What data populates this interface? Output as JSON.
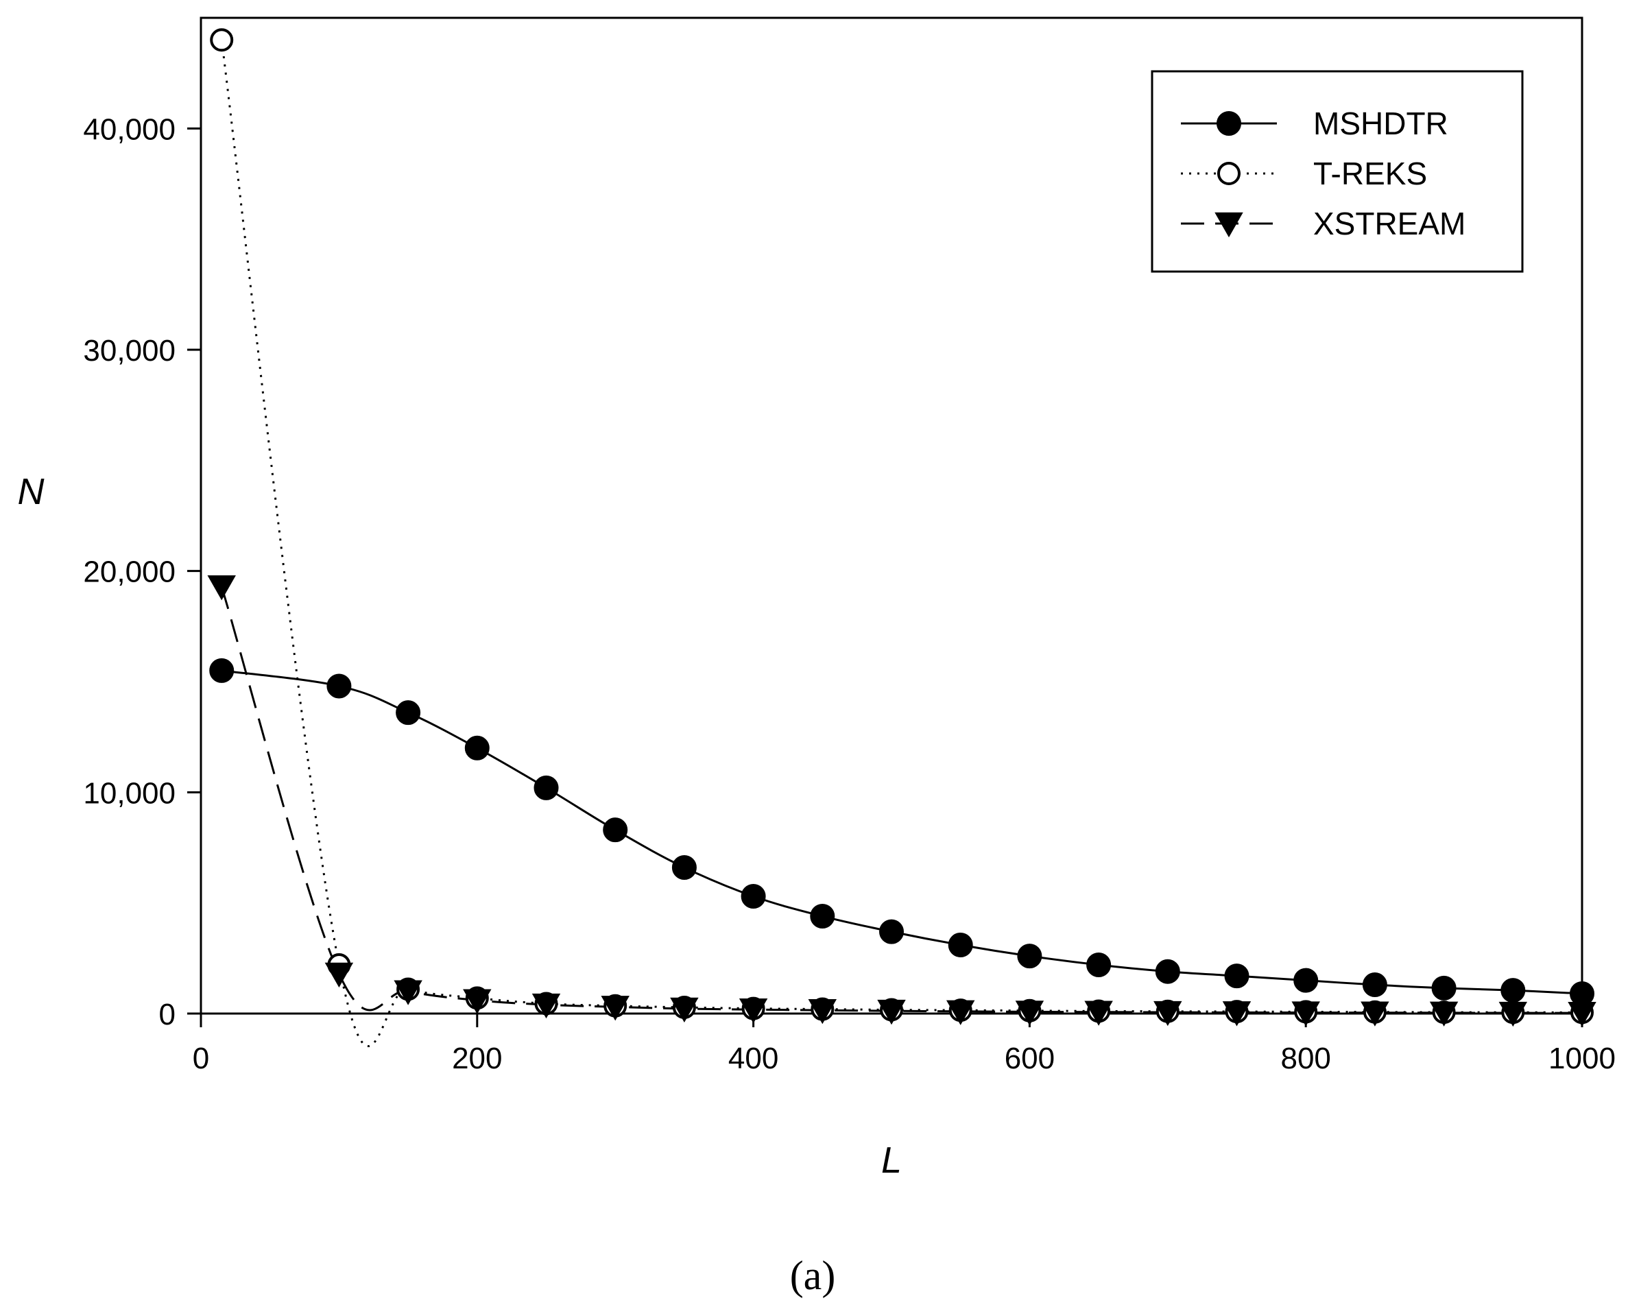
{
  "chart_data": {
    "type": "line",
    "title": "",
    "caption": "(a)",
    "xlabel": "L",
    "ylabel": "N",
    "xlim": [
      0,
      1000
    ],
    "ylim": [
      0,
      45000
    ],
    "xticks": [
      0,
      200,
      400,
      600,
      800,
      1000
    ],
    "xtick_labels": [
      "0",
      "200",
      "400",
      "600",
      "800",
      "1000"
    ],
    "yticks": [
      0,
      10000,
      20000,
      30000,
      40000
    ],
    "ytick_labels": [
      "0",
      "10,000",
      "20,000",
      "30,000",
      "40,000"
    ],
    "grid": false,
    "legend_position": "top-right",
    "series": [
      {
        "name": "MSHDTR",
        "marker": "filled-circle",
        "line_style": "solid",
        "color": "#000000",
        "x": [
          15,
          100,
          150,
          200,
          250,
          300,
          350,
          400,
          450,
          500,
          550,
          600,
          650,
          700,
          750,
          800,
          850,
          900,
          950,
          1000
        ],
        "y": [
          15500,
          14800,
          13600,
          12000,
          10200,
          8300,
          6600,
          5300,
          4400,
          3700,
          3100,
          2600,
          2200,
          1900,
          1700,
          1500,
          1300,
          1150,
          1050,
          900
        ]
      },
      {
        "name": "T-REKS",
        "marker": "open-circle",
        "line_style": "dotted",
        "color": "#000000",
        "x": [
          15,
          100,
          150,
          200,
          250,
          300,
          350,
          400,
          450,
          500,
          550,
          600,
          650,
          700,
          750,
          800,
          850,
          900,
          950,
          1000
        ],
        "y": [
          44000,
          2200,
          1100,
          700,
          450,
          350,
          280,
          230,
          200,
          170,
          150,
          130,
          110,
          100,
          90,
          80,
          70,
          60,
          55,
          50
        ]
      },
      {
        "name": "XSTREAM",
        "marker": "filled-triangle-down",
        "line_style": "dashed",
        "color": "#000000",
        "x": [
          15,
          100,
          150,
          200,
          250,
          300,
          350,
          400,
          450,
          500,
          550,
          600,
          650,
          700,
          750,
          800,
          850,
          900,
          950,
          1000
        ],
        "y": [
          19300,
          1800,
          1000,
          600,
          400,
          300,
          220,
          180,
          150,
          120,
          100,
          80,
          70,
          60,
          50,
          45,
          40,
          35,
          30,
          25
        ]
      }
    ]
  }
}
